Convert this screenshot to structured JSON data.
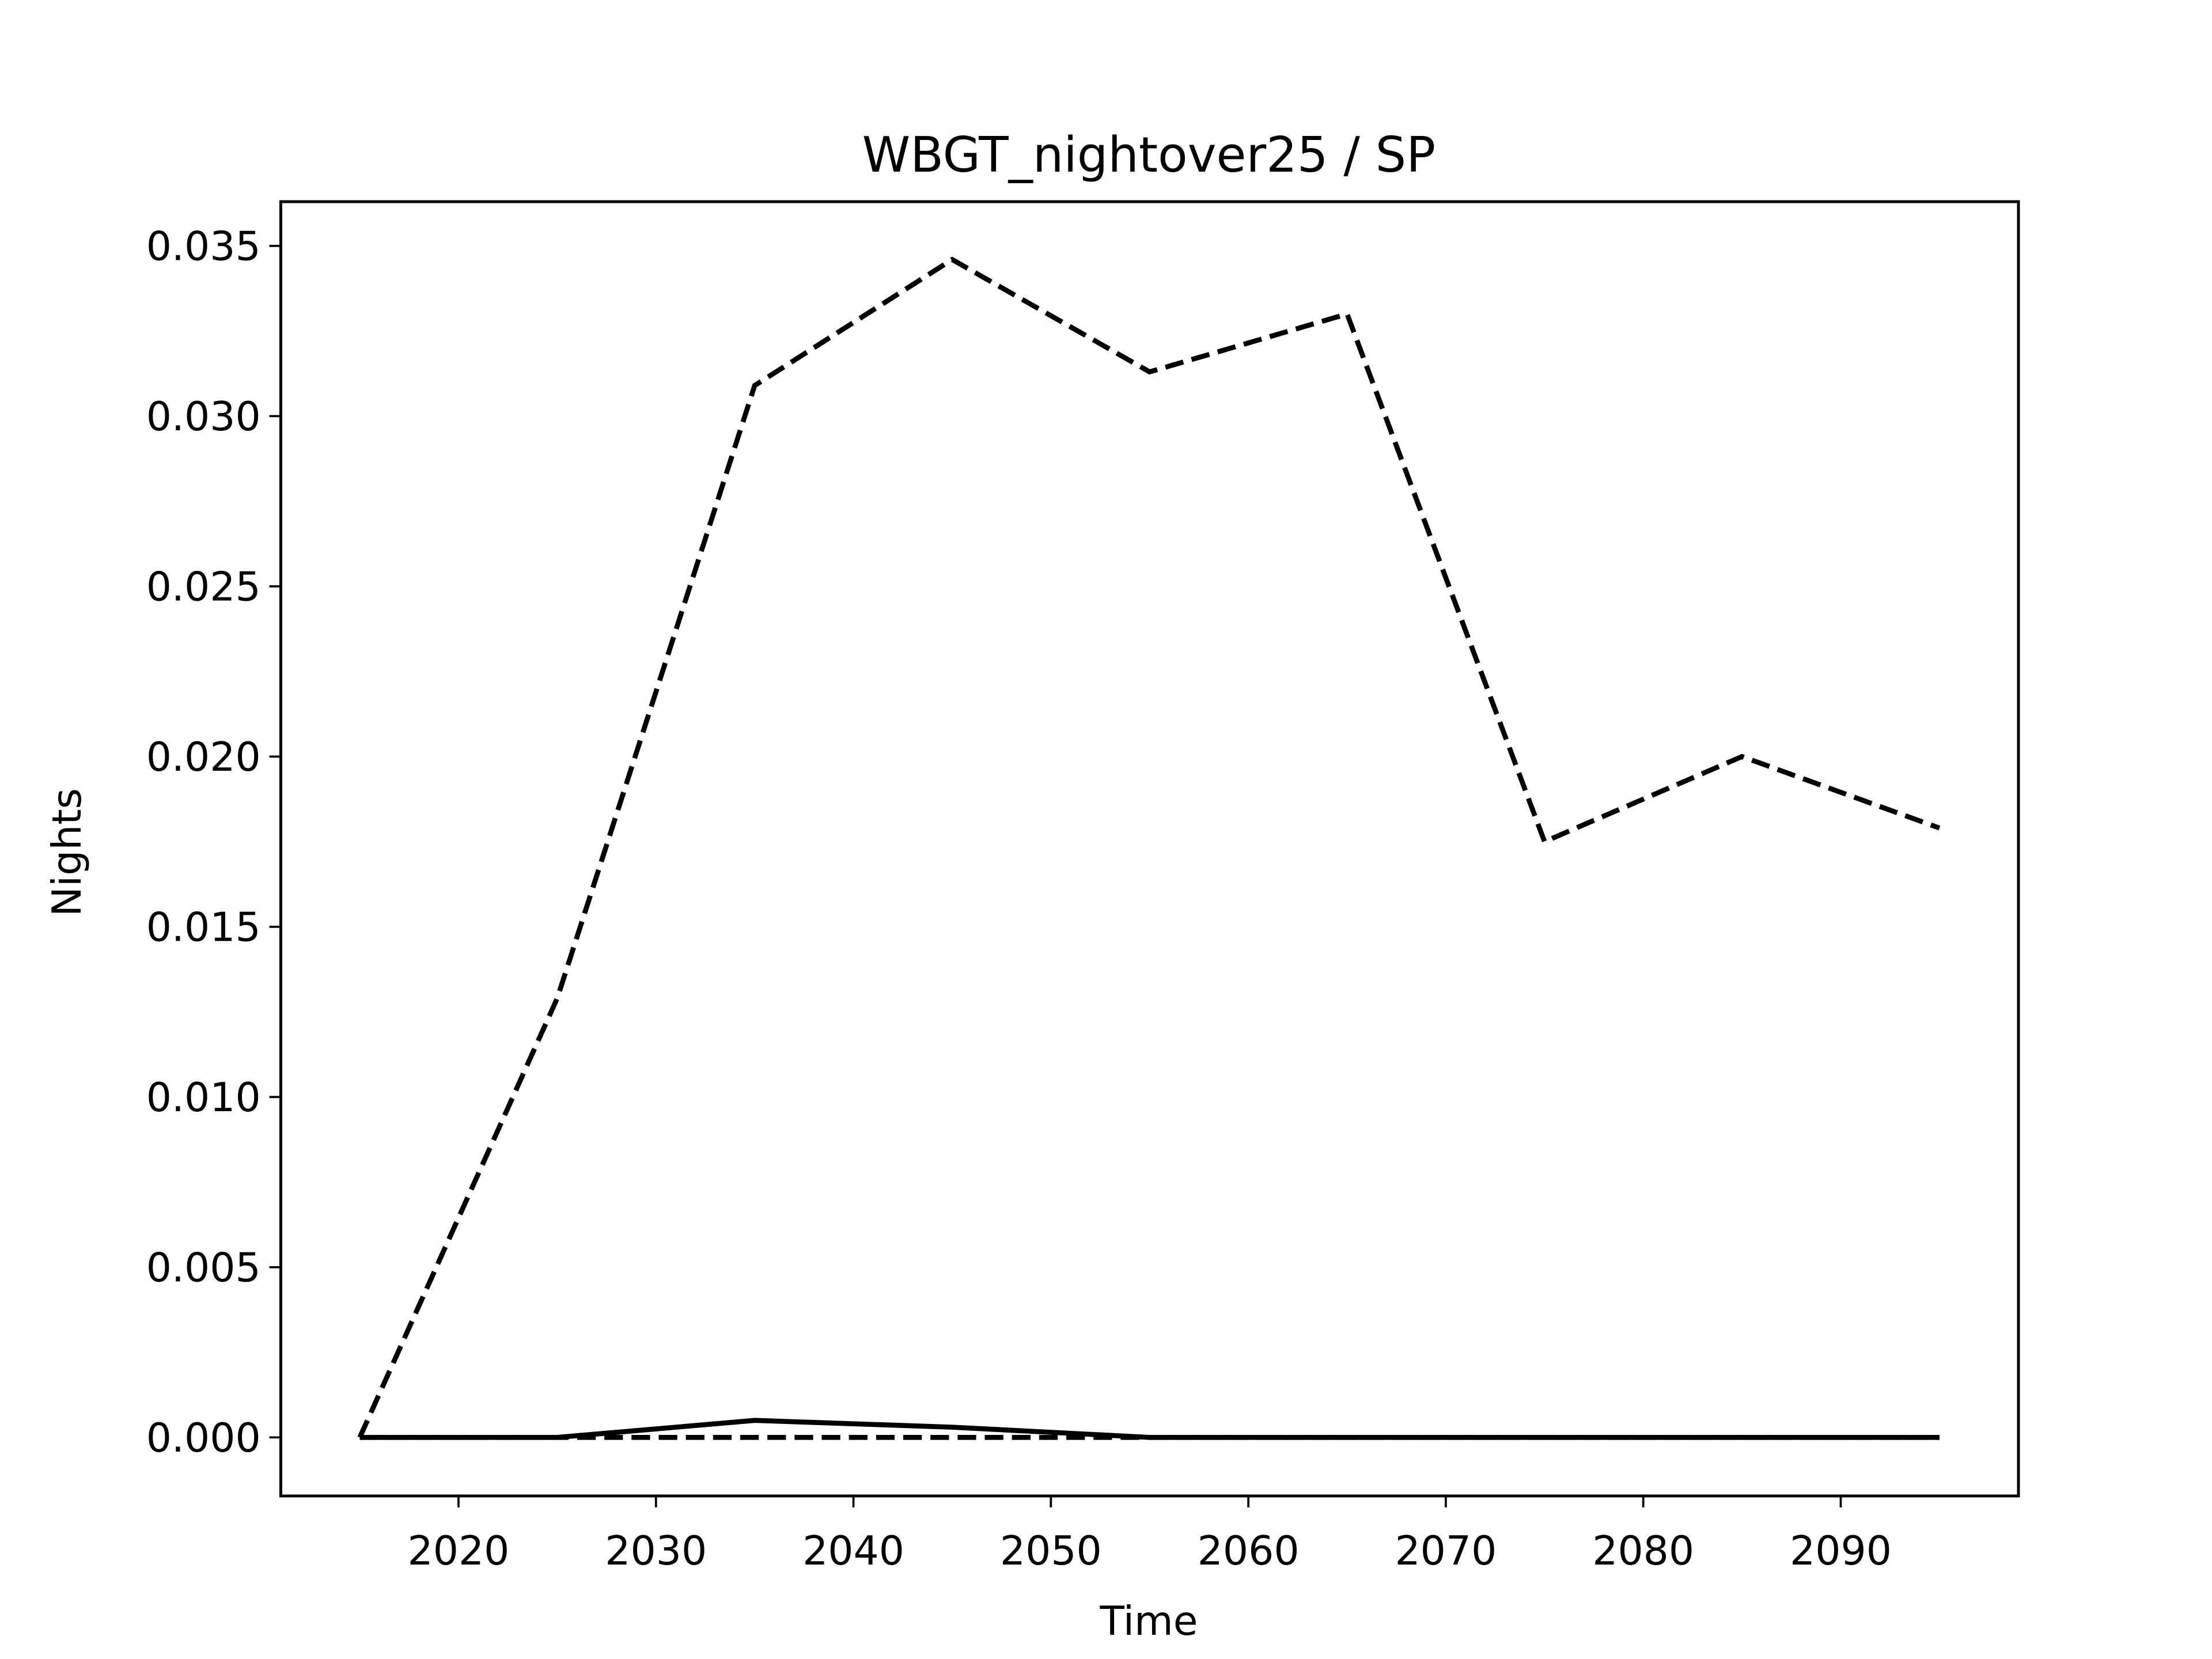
{
  "chart_data": {
    "type": "line",
    "title": "WBGT_nightover25 / SP",
    "xlabel": "Time",
    "ylabel": "Nights",
    "x": [
      2015,
      2025,
      2035,
      2045,
      2055,
      2065,
      2075,
      2085,
      2095
    ],
    "series": [
      {
        "color": "#000000",
        "linestyle": "dashed",
        "values": [
          0,
          0.0129,
          0.0309,
          0.0346,
          0.0313,
          0.033,
          0.0175,
          0.02,
          0.0179
        ]
      },
      {
        "color": "#000000",
        "linestyle": "dashed",
        "values": [
          0,
          0,
          0,
          0,
          0,
          0,
          0,
          0,
          0
        ]
      },
      {
        "color": "#000000",
        "linestyle": "solid",
        "values": [
          0,
          0,
          0.0005,
          0.0003,
          0,
          0,
          0,
          0,
          0
        ]
      }
    ],
    "xlim": [
      2011,
      2099
    ],
    "xticks": [
      2020,
      2030,
      2040,
      2050,
      2060,
      2070,
      2080,
      2090
    ],
    "ylim": [
      -0.00172,
      0.0363
    ],
    "yticks": [
      {
        "value": 0,
        "label": "0.000"
      },
      {
        "value": 0.005,
        "label": "0.005"
      },
      {
        "value": 0.01,
        "label": "0.010"
      },
      {
        "value": 0.015,
        "label": "0.015"
      },
      {
        "value": 0.02,
        "label": "0.020"
      },
      {
        "value": 0.025,
        "label": "0.025"
      },
      {
        "value": 0.03,
        "label": "0.030"
      },
      {
        "value": 0.035,
        "label": "0.035"
      }
    ],
    "grid": false
  }
}
